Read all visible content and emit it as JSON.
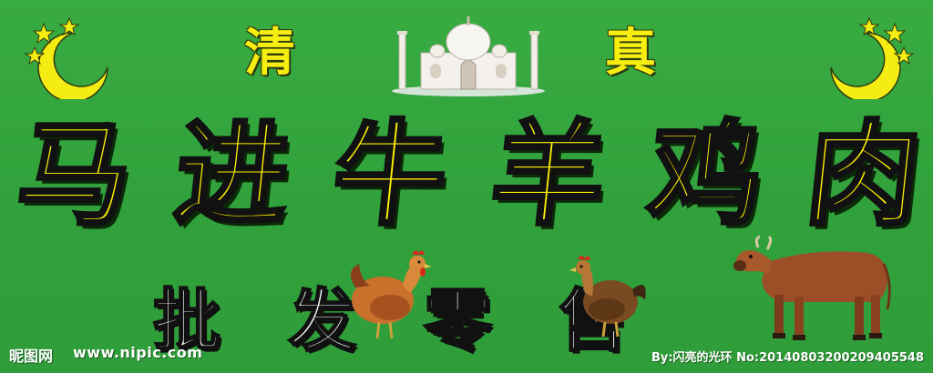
{
  "sign": {
    "top_left": "清",
    "top_right": "真",
    "headline": [
      "马",
      "进",
      "牛",
      "羊",
      "鸡",
      "肉"
    ],
    "subline": [
      "批",
      "发",
      "零",
      "售"
    ]
  },
  "watermark": {
    "logo": "昵图网",
    "url": "www.nipic.com",
    "credit": "By:闪亮的光环 No:20140803200209405548"
  },
  "icons": {
    "emblem": "crescent-and-stars-icon",
    "building": "mosque-icon",
    "animals": [
      "chicken-icon",
      "chicken-icon",
      "cow-icon"
    ]
  },
  "colors": {
    "background": "#32a33c",
    "headline": "#fff200",
    "subline": "#ffffff",
    "outline": "#111111"
  }
}
